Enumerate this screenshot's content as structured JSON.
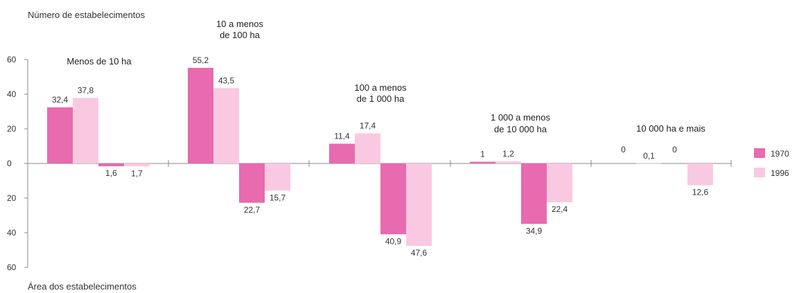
{
  "chart_data": {
    "type": "bar",
    "top_label": "Número de estabelecimentos",
    "bottom_label": "Área dos estabelecimentos",
    "ylim": [
      -60,
      60
    ],
    "yticks": [
      "60",
      "40",
      "20",
      "0",
      "20",
      "40",
      "60"
    ],
    "ytick_values": [
      60,
      40,
      20,
      0,
      -20,
      -40,
      -60
    ],
    "categories": [
      [
        "Menos de 10 ha"
      ],
      [
        "10 a menos",
        "de 100 ha"
      ],
      [
        "100 a menos",
        "de 1 000 ha"
      ],
      [
        "1 000 a menos",
        "de 10 000 ha"
      ],
      [
        "10 000 ha e mais"
      ]
    ],
    "legend_position": "right",
    "series": [
      {
        "name": "1970",
        "color": "#e86aaf",
        "top_values": [
          32.4,
          55.2,
          11.4,
          1,
          0
        ],
        "top_labels": [
          "32,4",
          "55,2",
          "11,4",
          "1",
          "0"
        ],
        "bottom_values": [
          -1.6,
          -22.7,
          -40.9,
          -34.9,
          0
        ],
        "bottom_labels": [
          "1,6",
          "22,7",
          "40,9",
          "34,9",
          "0"
        ]
      },
      {
        "name": "1996",
        "color": "#f9c9e1",
        "top_values": [
          37.8,
          43.5,
          17.4,
          1.2,
          0.1
        ],
        "top_labels": [
          "37,8",
          "43,5",
          "17,4",
          "1,2",
          "0,1"
        ],
        "bottom_values": [
          -1.7,
          -15.7,
          -47.6,
          -22.4,
          -12.6
        ],
        "bottom_labels": [
          "1,7",
          "15,7",
          "47,6",
          "22,4",
          "12,6"
        ]
      }
    ]
  }
}
